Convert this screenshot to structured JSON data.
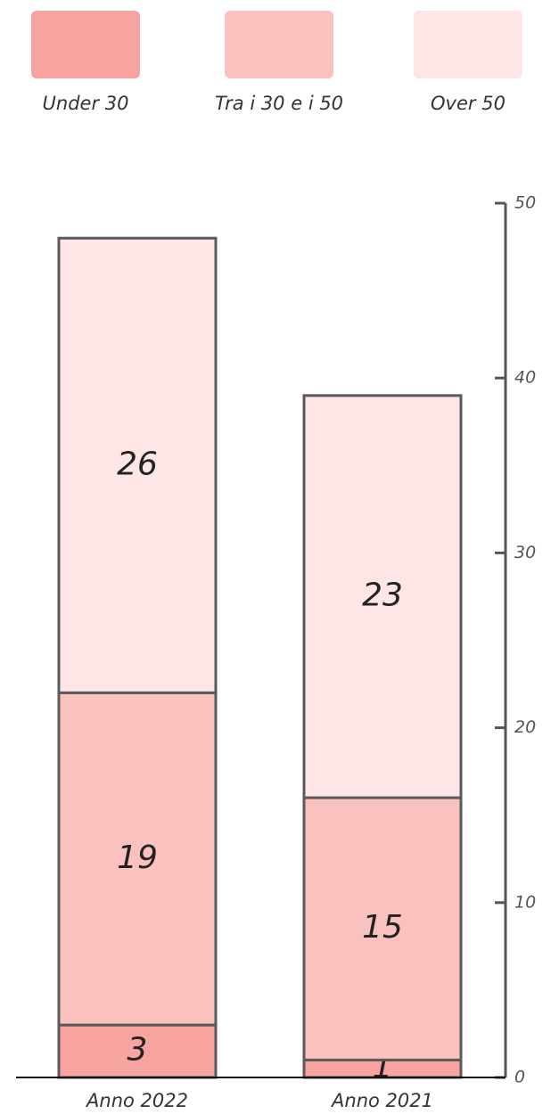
{
  "chart_data": {
    "type": "stacked_bar",
    "categories": [
      "Anno 2022",
      "Anno 2021"
    ],
    "series": [
      {
        "name": "Under 30",
        "color": "#f7a3a0",
        "values": [
          3,
          1
        ]
      },
      {
        "name": "Tra i 30 e i 50",
        "color": "#f9c2bf",
        "values": [
          19,
          15
        ]
      },
      {
        "name": "Over 50",
        "color": "#fde6e5",
        "values": [
          26,
          23
        ]
      }
    ],
    "ylim": [
      0,
      50
    ],
    "yticks": [
      0,
      10,
      20,
      30,
      40,
      50
    ],
    "legend": "top"
  }
}
